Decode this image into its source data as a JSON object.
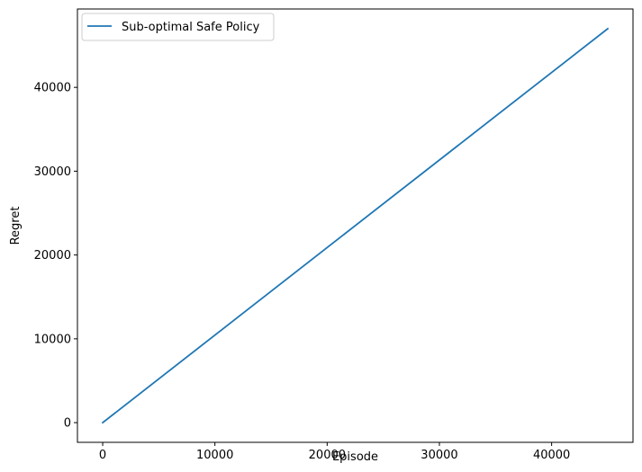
{
  "chart_data": {
    "type": "line",
    "xlabel": "Episode",
    "ylabel": "Regret",
    "xlim": [
      -2250,
      47250
    ],
    "ylim": [
      -2350,
      49350
    ],
    "x_ticks": [
      0,
      10000,
      20000,
      30000,
      40000
    ],
    "y_ticks": [
      0,
      10000,
      20000,
      30000,
      40000
    ],
    "grid": false,
    "legend": "top-left",
    "series": [
      {
        "name": "Sub-optimal Safe Policy",
        "color": "#1f77b4",
        "x": [
          0,
          45000
        ],
        "y": [
          0,
          47000
        ]
      }
    ]
  }
}
